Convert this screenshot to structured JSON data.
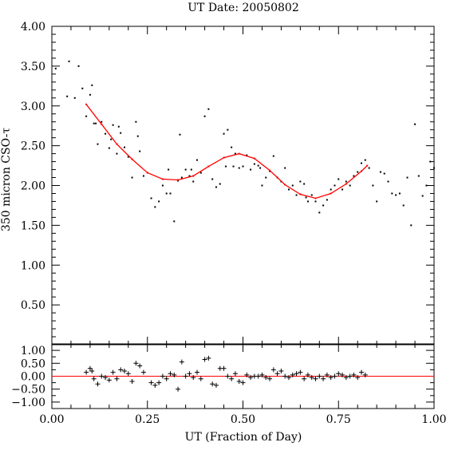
{
  "chart_data": [
    {
      "type": "scatter",
      "title": "UT Date: 20050802",
      "ylabel": "350 micron CSO-τ",
      "xlim": [
        0,
        1
      ],
      "ylim": [
        0,
        4
      ],
      "xticks": [
        "0.00",
        "0.25",
        "0.50",
        "0.75",
        "1.00"
      ],
      "yticks": [
        "0.50",
        "1.00",
        "1.50",
        "2.00",
        "2.50",
        "3.00",
        "3.50",
        "4.00"
      ],
      "grid": false,
      "fit_color": "#ff0000",
      "series": [
        {
          "kind": "points",
          "x": [
            0.01,
            0.04,
            0.045,
            0.06,
            0.07,
            0.08,
            0.09,
            0.1,
            0.105,
            0.11,
            0.115,
            0.12,
            0.13,
            0.14,
            0.15,
            0.155,
            0.16,
            0.17,
            0.175,
            0.18,
            0.19,
            0.2,
            0.21,
            0.22,
            0.225,
            0.23,
            0.24,
            0.26,
            0.27,
            0.28,
            0.29,
            0.3,
            0.305,
            0.31,
            0.32,
            0.33,
            0.335,
            0.34,
            0.35,
            0.36,
            0.365,
            0.37,
            0.38,
            0.39,
            0.4,
            0.41,
            0.42,
            0.43,
            0.44,
            0.45,
            0.455,
            0.46,
            0.47,
            0.475,
            0.48,
            0.49,
            0.5,
            0.51,
            0.52,
            0.53,
            0.54,
            0.545,
            0.55,
            0.56,
            0.57,
            0.58,
            0.59,
            0.6,
            0.61,
            0.62,
            0.63,
            0.64,
            0.65,
            0.66,
            0.665,
            0.67,
            0.68,
            0.69,
            0.7,
            0.71,
            0.72,
            0.73,
            0.74,
            0.75,
            0.76,
            0.77,
            0.78,
            0.79,
            0.8,
            0.81,
            0.82,
            0.83,
            0.84,
            0.85,
            0.86,
            0.87,
            0.88,
            0.89,
            0.9,
            0.91,
            0.92,
            0.93,
            0.94,
            0.95,
            0.96,
            0.97,
            0.98,
            0.99,
            1.0
          ],
          "y": [
            3.47,
            3.12,
            3.56,
            3.1,
            3.5,
            3.22,
            2.87,
            3.14,
            3.26,
            2.78,
            2.78,
            2.52,
            2.8,
            2.65,
            2.47,
            2.58,
            2.76,
            2.4,
            2.74,
            2.66,
            2.48,
            2.36,
            2.1,
            2.8,
            2.62,
            2.43,
            2.12,
            1.84,
            1.73,
            1.8,
            2.0,
            1.9,
            2.2,
            1.9,
            1.55,
            2.06,
            2.64,
            2.1,
            2.2,
            2.12,
            2.2,
            2.05,
            2.32,
            2.16,
            2.87,
            2.96,
            2.08,
            1.98,
            2.02,
            2.65,
            2.24,
            2.7,
            2.48,
            2.24,
            2.4,
            2.22,
            2.24,
            2.38,
            2.2,
            2.27,
            2.25,
            2.22,
            2.0,
            2.1,
            2.18,
            2.37,
            2.1,
            2.05,
            2.22,
            1.95,
            2.0,
            1.88,
            2.05,
            2.02,
            1.85,
            1.8,
            1.88,
            1.8,
            1.66,
            1.75,
            1.82,
            1.95,
            2.0,
            2.08,
            1.95,
            2.05,
            2.0,
            2.12,
            2.17,
            2.28,
            2.32,
            2.22,
            2.0,
            1.8,
            2.17,
            2.15,
            2.05,
            1.9,
            1.88,
            1.9,
            1.75,
            2.1,
            1.5,
            2.77,
            2.12,
            1.87,
            2.0,
            2.3,
            2.22
          ]
        },
        {
          "kind": "fit",
          "x": [
            0.09,
            0.13,
            0.17,
            0.21,
            0.25,
            0.29,
            0.33,
            0.37,
            0.41,
            0.45,
            0.49,
            0.53,
            0.57,
            0.61,
            0.65,
            0.69,
            0.73,
            0.77,
            0.81,
            0.825
          ],
          "y": [
            3.02,
            2.77,
            2.52,
            2.33,
            2.16,
            2.08,
            2.07,
            2.12,
            2.24,
            2.35,
            2.4,
            2.34,
            2.19,
            2.01,
            1.89,
            1.84,
            1.9,
            2.02,
            2.18,
            2.25
          ]
        }
      ]
    },
    {
      "type": "scatter",
      "xlabel": "UT (Fraction of Day)",
      "xlim": [
        0,
        1
      ],
      "ylim": [
        -1.25,
        1.25
      ],
      "xticks": [
        "0.00",
        "0.25",
        "0.50",
        "0.75",
        "1.00"
      ],
      "yticks": [
        "1.00",
        "0.50",
        "0.00",
        "−0.50",
        "−1.00"
      ],
      "grid": false,
      "zero_line_color": "#ff0000",
      "series": [
        {
          "kind": "residuals",
          "x": [
            0.09,
            0.1,
            0.105,
            0.11,
            0.12,
            0.13,
            0.14,
            0.15,
            0.16,
            0.17,
            0.18,
            0.19,
            0.2,
            0.21,
            0.22,
            0.23,
            0.24,
            0.26,
            0.27,
            0.28,
            0.29,
            0.3,
            0.31,
            0.32,
            0.33,
            0.34,
            0.35,
            0.36,
            0.37,
            0.38,
            0.39,
            0.4,
            0.41,
            0.42,
            0.43,
            0.44,
            0.45,
            0.46,
            0.47,
            0.48,
            0.49,
            0.5,
            0.51,
            0.52,
            0.53,
            0.54,
            0.55,
            0.56,
            0.57,
            0.58,
            0.59,
            0.6,
            0.61,
            0.62,
            0.63,
            0.64,
            0.65,
            0.66,
            0.67,
            0.68,
            0.69,
            0.7,
            0.71,
            0.72,
            0.73,
            0.74,
            0.75,
            0.76,
            0.77,
            0.78,
            0.79,
            0.8,
            0.81,
            0.82
          ],
          "y": [
            0.15,
            0.3,
            0.2,
            -0.1,
            -0.3,
            0.0,
            -0.05,
            -0.15,
            0.15,
            -0.1,
            0.25,
            0.2,
            0.1,
            -0.2,
            0.5,
            0.4,
            0.15,
            -0.25,
            -0.35,
            -0.25,
            0.0,
            -0.1,
            0.1,
            0.05,
            -0.5,
            0.55,
            0.0,
            0.1,
            -0.05,
            0.15,
            -0.1,
            0.65,
            0.7,
            -0.3,
            -0.35,
            0.3,
            0.3,
            0.0,
            -0.1,
            0.1,
            -0.2,
            -0.25,
            0.05,
            -0.05,
            0.0,
            0.0,
            0.05,
            -0.05,
            -0.1,
            0.25,
            0.1,
            0.2,
            0.0,
            -0.05,
            0.05,
            0.1,
            0.15,
            -0.1,
            0.05,
            -0.05,
            -0.1,
            0.0,
            -0.1,
            0.05,
            -0.05,
            0.0,
            0.1,
            0.05,
            -0.05,
            0.0,
            0.05,
            -0.05,
            0.15,
            0.05
          ]
        }
      ]
    }
  ]
}
